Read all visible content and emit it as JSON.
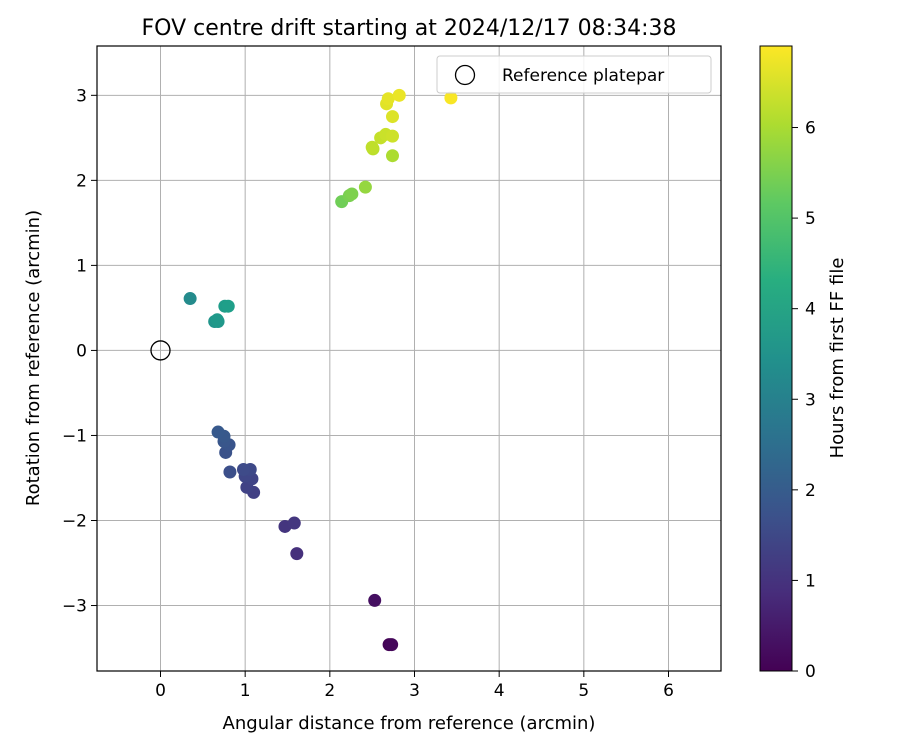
{
  "chart_data": {
    "type": "scatter",
    "title": "FOV centre drift starting at 2024/12/17 08:34:38",
    "xlabel": "Angular distance from reference (arcmin)",
    "ylabel": "Rotation from reference (arcmin)",
    "xlim": [
      -0.75,
      6.62
    ],
    "ylim": [
      -3.77,
      3.58
    ],
    "xticks": [
      0,
      1,
      2,
      3,
      4,
      5,
      6
    ],
    "yticks": [
      -3,
      -2,
      -1,
      0,
      1,
      2,
      3
    ],
    "grid": true,
    "legend": {
      "position": "top-right",
      "entries": [
        "Reference platepar"
      ]
    },
    "reference_point": {
      "x": 0,
      "y": 0
    },
    "colorbar": {
      "label": "Hours from first FF file",
      "colormap": "viridis",
      "range": [
        0,
        6.9
      ],
      "ticks": [
        0,
        1,
        2,
        3,
        4,
        5,
        6
      ]
    },
    "points": [
      {
        "x": 2.7,
        "y": -3.46,
        "c": 0.05
      },
      {
        "x": 2.73,
        "y": -3.46,
        "c": 0.12
      },
      {
        "x": 2.53,
        "y": -2.94,
        "c": 0.28
      },
      {
        "x": 1.61,
        "y": -2.39,
        "c": 0.95
      },
      {
        "x": 1.47,
        "y": -2.07,
        "c": 1.05
      },
      {
        "x": 1.58,
        "y": -2.03,
        "c": 1.1
      },
      {
        "x": 1.1,
        "y": -1.67,
        "c": 1.3
      },
      {
        "x": 1.02,
        "y": -1.61,
        "c": 1.35
      },
      {
        "x": 1.08,
        "y": -1.51,
        "c": 1.4
      },
      {
        "x": 1.0,
        "y": -1.48,
        "c": 1.45
      },
      {
        "x": 1.06,
        "y": -1.4,
        "c": 1.5
      },
      {
        "x": 0.98,
        "y": -1.4,
        "c": 1.55
      },
      {
        "x": 0.82,
        "y": -1.43,
        "c": 1.65
      },
      {
        "x": 0.77,
        "y": -1.2,
        "c": 1.75
      },
      {
        "x": 0.81,
        "y": -1.11,
        "c": 1.8
      },
      {
        "x": 0.75,
        "y": -1.07,
        "c": 1.85
      },
      {
        "x": 0.75,
        "y": -1.01,
        "c": 1.88
      },
      {
        "x": 0.68,
        "y": -0.96,
        "c": 1.92
      },
      {
        "x": 0.64,
        "y": 0.34,
        "c": 3.6
      },
      {
        "x": 0.68,
        "y": 0.34,
        "c": 3.65
      },
      {
        "x": 0.67,
        "y": 0.36,
        "c": 3.7
      },
      {
        "x": 0.76,
        "y": 0.52,
        "c": 3.8
      },
      {
        "x": 0.8,
        "y": 0.52,
        "c": 3.85
      },
      {
        "x": 0.35,
        "y": 0.61,
        "c": 3.3
      },
      {
        "x": 2.14,
        "y": 1.75,
        "c": 5.4
      },
      {
        "x": 2.23,
        "y": 1.82,
        "c": 5.5
      },
      {
        "x": 2.26,
        "y": 1.84,
        "c": 5.55
      },
      {
        "x": 2.42,
        "y": 1.92,
        "c": 5.8
      },
      {
        "x": 2.74,
        "y": 2.29,
        "c": 6.05
      },
      {
        "x": 2.51,
        "y": 2.37,
        "c": 6.2
      },
      {
        "x": 2.5,
        "y": 2.39,
        "c": 6.25
      },
      {
        "x": 2.6,
        "y": 2.5,
        "c": 6.3
      },
      {
        "x": 2.66,
        "y": 2.54,
        "c": 6.35
      },
      {
        "x": 2.74,
        "y": 2.52,
        "c": 6.4
      },
      {
        "x": 2.74,
        "y": 2.75,
        "c": 6.55
      },
      {
        "x": 2.67,
        "y": 2.9,
        "c": 6.6
      },
      {
        "x": 2.69,
        "y": 2.96,
        "c": 6.65
      },
      {
        "x": 2.82,
        "y": 3.0,
        "c": 6.7
      },
      {
        "x": 3.43,
        "y": 2.97,
        "c": 6.85
      }
    ]
  }
}
